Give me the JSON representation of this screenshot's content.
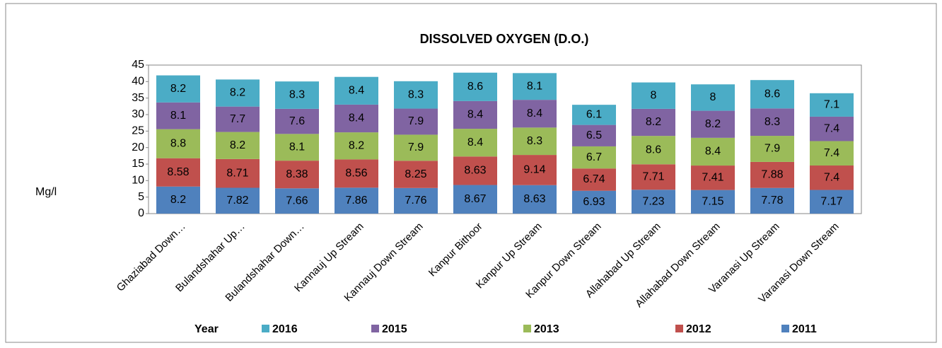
{
  "chart_data": {
    "type": "stacked_bar",
    "title": "DISSOLVED OXYGEN (D.O.)",
    "y_label": "Mg/l",
    "legend_title": "Year",
    "categories": [
      "Ghaziabad Down…",
      "Bulandshahar Up…",
      "Bulandshahar Down…",
      "Kannauj Up Stream",
      "Kannauj Down Stream",
      "Kanpur Bithoor",
      "Kanpur Up Stream",
      "Kanpur Down Stream",
      "Allahabad Up Stream",
      "Allahabad Down Stream",
      "Varanasi Up Stream",
      "Varanasi Down Stream"
    ],
    "series": [
      {
        "name": "2011",
        "color": "#4f81bd",
        "values": [
          8.2,
          7.82,
          7.66,
          7.86,
          7.76,
          8.67,
          8.63,
          6.93,
          7.23,
          7.15,
          7.78,
          7.17
        ]
      },
      {
        "name": "2012",
        "color": "#c0504d",
        "values": [
          8.58,
          8.71,
          8.38,
          8.56,
          8.25,
          8.63,
          9.14,
          6.74,
          7.71,
          7.41,
          7.88,
          7.4
        ]
      },
      {
        "name": "2013",
        "color": "#9bbb59",
        "values": [
          8.8,
          8.2,
          8.1,
          8.2,
          7.9,
          8.4,
          8.3,
          6.7,
          8.6,
          8.4,
          7.9,
          7.4
        ]
      },
      {
        "name": "2015",
        "color": "#8064a2",
        "values": [
          8.1,
          7.7,
          7.6,
          8.4,
          7.9,
          8.4,
          8.4,
          6.5,
          8.2,
          8.2,
          8.3,
          7.4
        ]
      },
      {
        "name": "2016",
        "color": "#4bacc6",
        "values": [
          8.2,
          8.2,
          8.3,
          8.4,
          8.3,
          8.6,
          8.1,
          6.1,
          8,
          8,
          8.6,
          7.1
        ]
      }
    ],
    "ylim": [
      0,
      45
    ],
    "yticks": [
      0,
      5,
      10,
      15,
      20,
      25,
      30,
      35,
      40,
      45
    ],
    "grid": false
  }
}
